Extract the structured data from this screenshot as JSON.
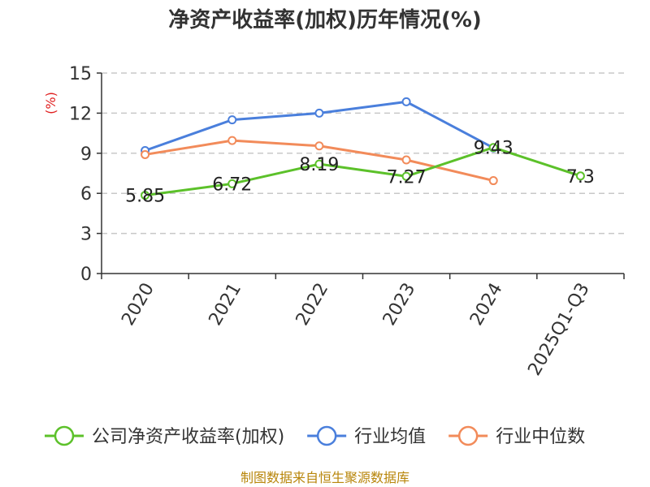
{
  "chart_data": {
    "type": "line",
    "title": "净资产收益率(加权)历年情况(%)",
    "ylabel": "(%)",
    "xlabel": "",
    "categories": [
      "2020",
      "2021",
      "2022",
      "2023",
      "2024",
      "2025Q1-Q3"
    ],
    "ylim": [
      0,
      15
    ],
    "yticks": [
      0,
      3,
      6,
      9,
      12,
      15
    ],
    "grid": true,
    "legend_position": "bottom",
    "series": [
      {
        "name": "公司净资产收益率(加权)",
        "color": "#5cc12a",
        "values": [
          5.85,
          6.72,
          8.19,
          7.27,
          9.43,
          7.3
        ],
        "labels": [
          "5.85",
          "6.72",
          "8.19",
          "7.27",
          "9.43",
          "7.3"
        ]
      },
      {
        "name": "行业均值",
        "color": "#4a7fdc",
        "values": [
          9.2,
          11.5,
          12.0,
          12.85,
          9.4,
          null
        ]
      },
      {
        "name": "行业中位数",
        "color": "#f28b5a",
        "values": [
          8.9,
          9.95,
          9.55,
          8.5,
          6.95,
          null
        ]
      }
    ],
    "source": "制图数据来自恒生聚源数据库"
  }
}
